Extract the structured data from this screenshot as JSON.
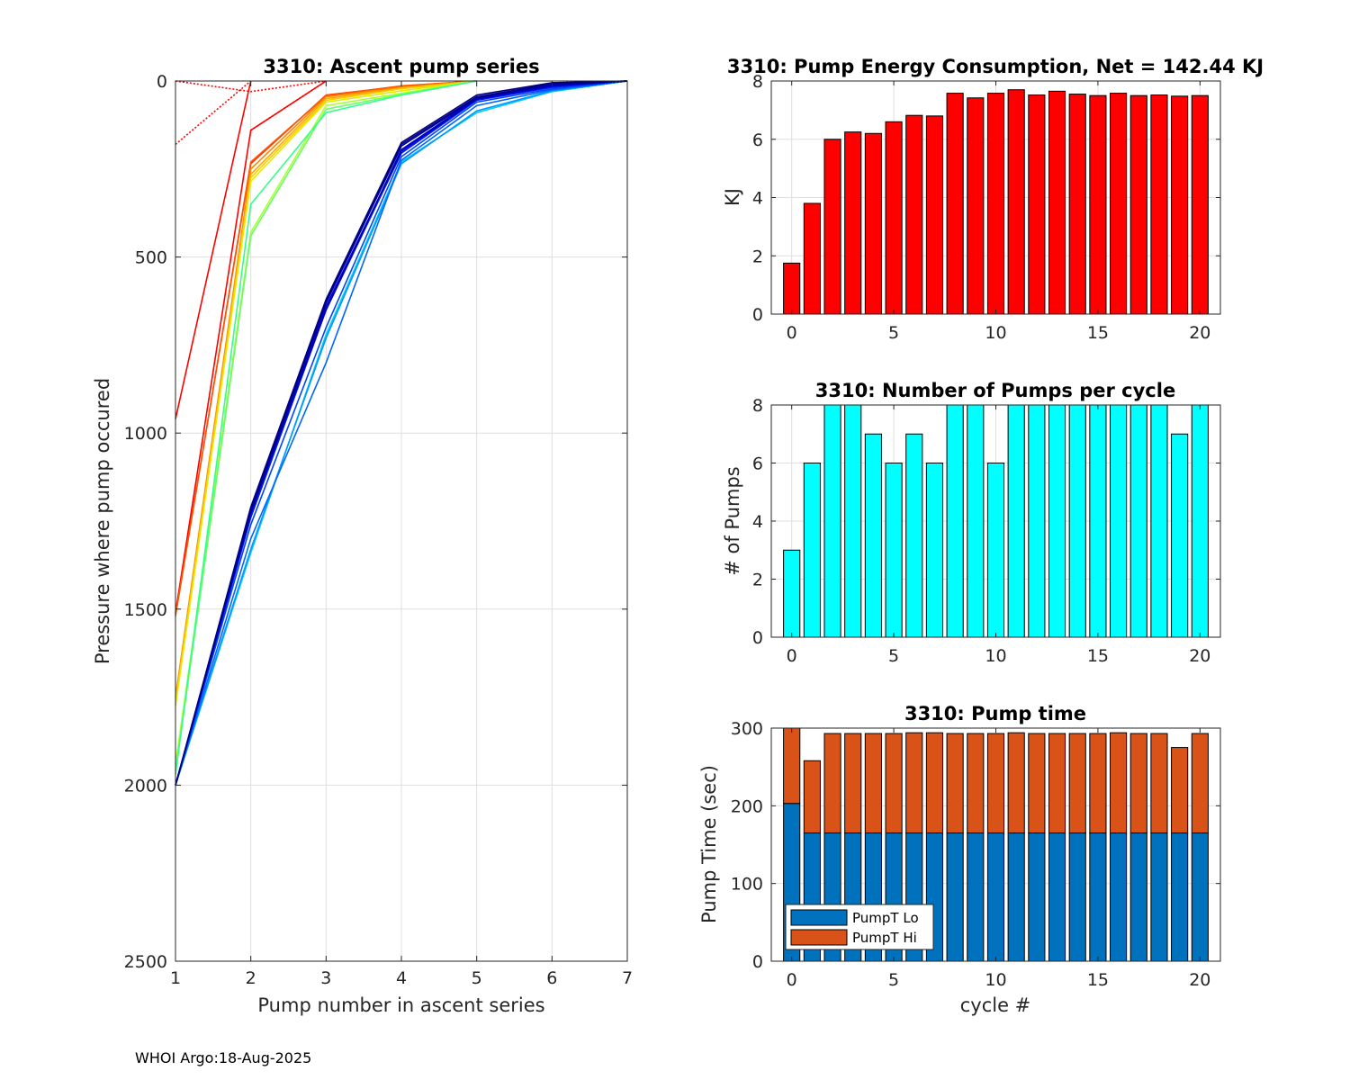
{
  "footer": "WHOI Argo:18-Aug-2025",
  "chart_data": [
    {
      "type": "line",
      "title": "3310: Ascent pump series",
      "xlabel": "Pump number in ascent series",
      "ylabel": "Pressure where pump occured",
      "xlim": [
        1,
        7
      ],
      "ylim": [
        0,
        2500
      ],
      "y_reversed": true,
      "xticks": [
        1,
        2,
        3,
        4,
        5,
        6,
        7
      ],
      "yticks": [
        0,
        500,
        1000,
        1500,
        2000,
        2500
      ],
      "grid": true,
      "colormap": "jet",
      "series": [
        {
          "cycle": 0,
          "color": "#ff0000",
          "y": [
            960,
            0
          ],
          "dotted_y": [
            180,
            0
          ]
        },
        {
          "cycle": 1,
          "color": "#ff0000",
          "y": [
            1510,
            140,
            0
          ],
          "dotted_y": [
            0,
            30,
            0
          ]
        },
        {
          "cycle": 2,
          "color": "#ff3300",
          "y": [
            1515,
            235,
            40,
            15,
            0
          ]
        },
        {
          "cycle": 3,
          "color": "#ff5500",
          "y": [
            1520,
            230,
            42,
            14,
            0
          ]
        },
        {
          "cycle": 4,
          "color": "#ff8800",
          "y": [
            1750,
            250,
            45,
            18,
            0
          ]
        },
        {
          "cycle": 5,
          "color": "#ffaa00",
          "y": [
            1760,
            265,
            50,
            20,
            0
          ]
        },
        {
          "cycle": 6,
          "color": "#ffcc00",
          "y": [
            1770,
            275,
            55,
            22,
            0
          ]
        },
        {
          "cycle": 7,
          "color": "#ddee00",
          "y": [
            1775,
            285,
            60,
            28,
            0
          ]
        },
        {
          "cycle": 8,
          "color": "#aaff33",
          "y": [
            1940,
            430,
            70,
            35,
            0
          ]
        },
        {
          "cycle": 9,
          "color": "#66ff66",
          "y": [
            1960,
            440,
            80,
            38,
            0
          ]
        },
        {
          "cycle": 10,
          "color": "#33ff88",
          "y": [
            1970,
            350,
            90,
            40,
            0
          ]
        },
        {
          "cycle": 11,
          "color": "#00ccff",
          "y": [
            2000,
            1340,
            720,
            230,
            90,
            30,
            0
          ]
        },
        {
          "cycle": 12,
          "color": "#0099ff",
          "y": [
            2000,
            1330,
            730,
            235,
            85,
            28,
            0
          ]
        },
        {
          "cycle": 13,
          "color": "#0066ff",
          "y": [
            2000,
            1300,
            800,
            225,
            70,
            25,
            0
          ]
        },
        {
          "cycle": 14,
          "color": "#0044ff",
          "y": [
            2000,
            1260,
            700,
            215,
            60,
            22,
            0
          ]
        },
        {
          "cycle": 15,
          "color": "#0022ee",
          "y": [
            2000,
            1240,
            650,
            205,
            55,
            18,
            0
          ]
        },
        {
          "cycle": 16,
          "color": "#0000dd",
          "y": [
            2000,
            1230,
            640,
            200,
            52,
            15,
            0
          ]
        },
        {
          "cycle": 17,
          "color": "#0000bb",
          "y": [
            2000,
            1225,
            650,
            195,
            50,
            12,
            0
          ]
        },
        {
          "cycle": 18,
          "color": "#000099",
          "y": [
            2000,
            1220,
            630,
            185,
            48,
            10,
            0
          ]
        },
        {
          "cycle": 19,
          "color": "#00008b",
          "y": [
            2000,
            1215,
            625,
            180,
            45,
            8,
            0
          ]
        },
        {
          "cycle": 20,
          "color": "#000080",
          "y": [
            2000,
            1210,
            620,
            175,
            40,
            5,
            0
          ]
        }
      ]
    },
    {
      "type": "bar",
      "title": "3310: Pump Energy Consumption,  Net = 142.44 KJ",
      "xlabel": "",
      "ylabel": "KJ",
      "xlim": [
        -1,
        21
      ],
      "ylim": [
        0,
        8
      ],
      "xticks": [
        0,
        5,
        10,
        15,
        20
      ],
      "yticks": [
        0,
        2,
        4,
        6,
        8
      ],
      "grid": true,
      "bar_color": "#ff0000",
      "categories": [
        0,
        1,
        2,
        3,
        4,
        5,
        6,
        7,
        8,
        9,
        10,
        11,
        12,
        13,
        14,
        15,
        16,
        17,
        18,
        19,
        20
      ],
      "values": [
        1.75,
        3.8,
        6.0,
        6.25,
        6.2,
        6.6,
        6.82,
        6.8,
        7.58,
        7.42,
        7.58,
        7.7,
        7.52,
        7.65,
        7.55,
        7.5,
        7.58,
        7.5,
        7.52,
        7.48,
        7.5
      ]
    },
    {
      "type": "bar",
      "title": "3310: Number of Pumps per cycle",
      "xlabel": "",
      "ylabel": "# of Pumps",
      "xlim": [
        -1,
        21
      ],
      "ylim": [
        0,
        8
      ],
      "xticks": [
        0,
        5,
        10,
        15,
        20
      ],
      "yticks": [
        0,
        2,
        4,
        6,
        8
      ],
      "grid": true,
      "bar_color": "#00ffff",
      "categories": [
        0,
        1,
        2,
        3,
        4,
        5,
        6,
        7,
        8,
        9,
        10,
        11,
        12,
        13,
        14,
        15,
        16,
        17,
        18,
        19,
        20
      ],
      "values": [
        3,
        6,
        8,
        8,
        7,
        6,
        7,
        6,
        8,
        8,
        6,
        8,
        8,
        8,
        8,
        8,
        8,
        8,
        8,
        7,
        8
      ]
    },
    {
      "type": "bar",
      "stacked": true,
      "title": "3310: Pump time",
      "xlabel": "cycle #",
      "ylabel": "Pump Time (sec)",
      "xlim": [
        -1,
        21
      ],
      "ylim": [
        0,
        300
      ],
      "xticks": [
        0,
        5,
        10,
        15,
        20
      ],
      "yticks": [
        0,
        100,
        200,
        300
      ],
      "grid": true,
      "legend_position": "bottom-left",
      "categories": [
        0,
        1,
        2,
        3,
        4,
        5,
        6,
        7,
        8,
        9,
        10,
        11,
        12,
        13,
        14,
        15,
        16,
        17,
        18,
        19,
        20
      ],
      "series": [
        {
          "name": "PumpT Lo",
          "color": "#0072bd",
          "values": [
            203,
            165,
            165,
            165,
            165,
            165,
            165,
            165,
            165,
            165,
            165,
            165,
            165,
            165,
            165,
            165,
            165,
            165,
            165,
            165,
            165
          ]
        },
        {
          "name": "PumpT Hi",
          "color": "#d95319",
          "values": [
            100,
            93,
            128,
            128,
            128,
            128,
            129,
            129,
            128,
            128,
            128,
            129,
            128,
            128,
            128,
            128,
            129,
            128,
            128,
            110,
            128
          ]
        }
      ]
    }
  ]
}
